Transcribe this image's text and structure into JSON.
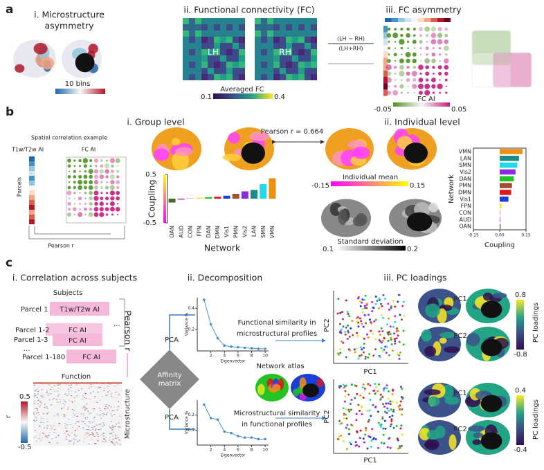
{
  "figure": {
    "a": {
      "label": "a",
      "title_i_1": "i. Microstructure",
      "title_i_2": "asymmetry",
      "bins": "10 bins",
      "title_ii": "ii. Functional connectivity (FC)",
      "lh": "LH",
      "rh": "RH",
      "fc_label": "Averaged FC",
      "fc_min": "0.1",
      "fc_max": "0.4",
      "formula_num": "(LH − RH)",
      "formula_den": "(LH+RH)",
      "title_iii": "iii. FC asymmetry",
      "ai_label": "FC AI",
      "ai_min": "-0.05",
      "ai_max": "0.05"
    },
    "b": {
      "label": "b",
      "title_i": "i. Group level",
      "example": "Spatial correlation example",
      "t1w": "T1w/T2w AI",
      "fcai": "FC AI",
      "parcels": "Parcels",
      "pearson": "Pearson r",
      "pearson_value": "Pearson r = 0.664",
      "title_ii": "ii. Individual level",
      "mean": "Individual mean",
      "mean_min": "-0.15",
      "mean_max": "0.15",
      "sd": "Standard deviation",
      "sd_min": "0.1",
      "sd_max": "0.2"
    },
    "c": {
      "label": "c",
      "title_i": "i. Correlation across subjects",
      "subjects": "Subjects",
      "parcel1": "Parcel 1",
      "parcel12": "Parcel 1-2",
      "parcel13": "Parcel 1-3",
      "dots": "...",
      "parcel180": "Parcel 1-180",
      "box1": "T1w/T2w AI",
      "box2": "FC AI",
      "pearson": "Pearson r",
      "function": "Function",
      "micro": "Microstructure",
      "r": "r",
      "r_max": "0.5",
      "r_min": "-0.5",
      "title_ii": "ii. Decomposition",
      "affinity1": "Affinity",
      "affinity2": "matrix",
      "pca": "PCA",
      "fs1": "Functional similarity in",
      "fs2": "microstructural profiles",
      "atlas": "Network atlas",
      "ms1": "Microstructural similarity",
      "ms2": "in functional profiles",
      "title_iii": "iii. PC loadings",
      "pc1": "PC1",
      "pc2": "PC2",
      "load": "PC loadings",
      "l1_max": "0.8",
      "l1_min": "-0.8",
      "l2_max": "0.4",
      "l2_min": "-0.4"
    }
  },
  "chart_data": [
    {
      "type": "bar",
      "ylabel": "Coupling",
      "xlabel": "Network",
      "categories": [
        "OAN",
        "AUD",
        "CON",
        "FPN",
        "DAN",
        "DMN",
        "Vis1",
        "PMN",
        "Vis2",
        "LAN",
        "SMN",
        "VMN"
      ],
      "values": [
        -0.08,
        -0.02,
        0.01,
        0.02,
        0.03,
        0.04,
        0.06,
        0.1,
        0.15,
        0.18,
        0.3,
        0.42
      ],
      "colors": [
        "#3f6e22",
        "#d21fd2",
        "#f2a0c8",
        "#e6e62a",
        "#22c322",
        "#e01818",
        "#1a3fd8",
        "#a0522d",
        "#8a2be2",
        "#1a8a8a",
        "#22d8e8",
        "#f09010"
      ],
      "ylim": [
        -0.5,
        0.5
      ],
      "yticks": [
        -0.5,
        0.5
      ]
    },
    {
      "type": "barh",
      "ylabel": "Network",
      "xlabel": "Coupling",
      "categories": [
        "VMN",
        "LAN",
        "SMN",
        "Vis2",
        "DAN",
        "PMN",
        "DMN",
        "Vis1",
        "FPN",
        "CON",
        "AUD",
        "OAN"
      ],
      "values": [
        0.13,
        0.11,
        0.1,
        0.09,
        0.08,
        0.07,
        0.065,
        0.05,
        0.01,
        0.005,
        0.003,
        0.005
      ],
      "colors": [
        "#f09010",
        "#1a8a8a",
        "#22d8e8",
        "#8a2be2",
        "#22c322",
        "#a0522d",
        "#e01818",
        "#1a3fd8",
        "#e6e62a",
        "#f2a0c8",
        "#d21fd2",
        "#3f6e22"
      ],
      "xlim": [
        -0.15,
        0.15
      ],
      "xticks": [
        -0.15,
        {
          "value": 0,
          "label": "0.00"
        },
        0.15
      ]
    },
    {
      "type": "line",
      "ylabel": "Variance %",
      "xlabel": "Eigenvector",
      "x": [
        1,
        2,
        3,
        4,
        5,
        6,
        7,
        8,
        9,
        10
      ],
      "values": [
        0.48,
        0.25,
        0.12,
        0.05,
        0.04,
        0.035,
        0.03,
        0.025,
        0.02,
        0.02
      ],
      "color": "#4a90c8",
      "xlim": [
        0,
        10.5
      ],
      "xticks": [
        2,
        4,
        6,
        8,
        10
      ],
      "ylim": [
        0,
        0.5
      ],
      "yticks": [
        0.2,
        0.4
      ]
    },
    {
      "type": "line",
      "ylabel": "Variance %",
      "xlabel": "Eigenvector",
      "x": [
        1,
        2,
        3,
        4,
        5,
        6,
        7,
        8,
        9,
        10
      ],
      "values": [
        0.27,
        0.18,
        0.17,
        0.09,
        0.08,
        0.06,
        0.05,
        0.05,
        0.04,
        0.04
      ],
      "color": "#4a90c8",
      "xlim": [
        0,
        10.5
      ],
      "xticks": [
        2,
        4,
        6,
        8,
        10
      ],
      "ylim": [
        0,
        0.3
      ],
      "yticks": [
        0.1,
        0.2
      ]
    }
  ]
}
